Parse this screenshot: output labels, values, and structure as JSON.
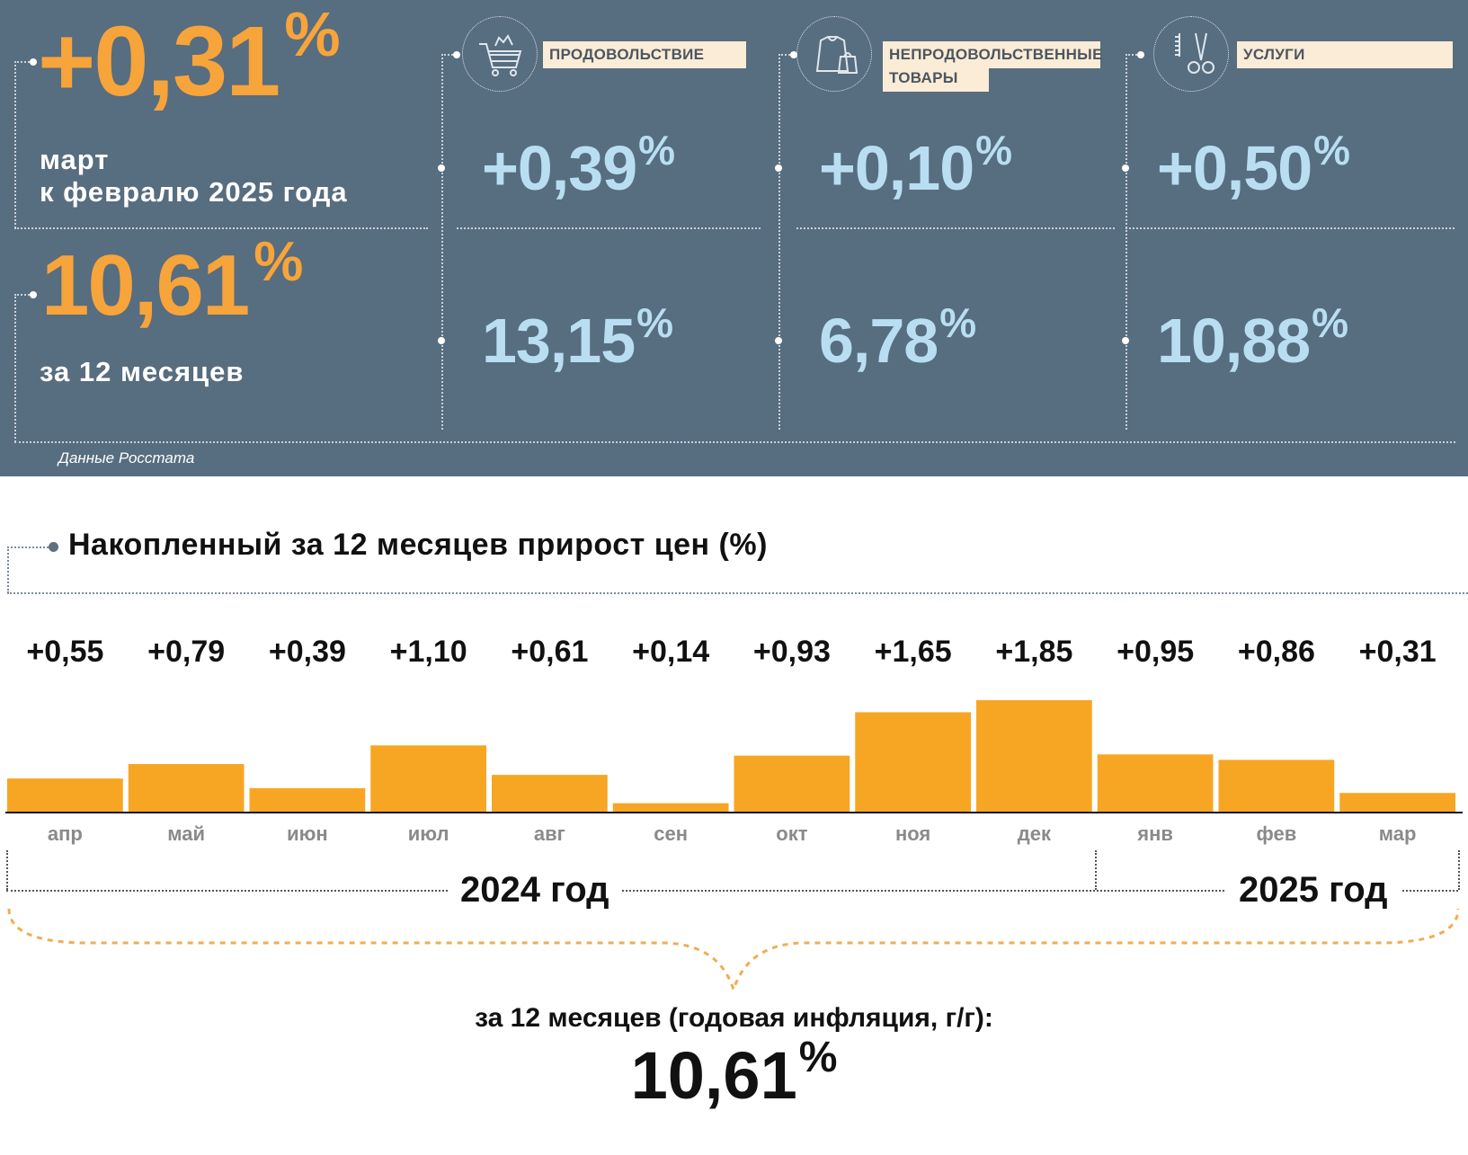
{
  "summary": {
    "monthly": {
      "value": "+0,31",
      "unit": "%",
      "label_line1": "март",
      "label_line2": "к февралю 2025 года"
    },
    "annual": {
      "value": "10,61",
      "unit": "%",
      "label": "за 12 месяцев"
    },
    "source": "Данные Росстата"
  },
  "categories": [
    {
      "name": "ПРОДОВОЛЬСТВИЕ",
      "icon": "shopping-cart-icon",
      "monthly": "+0,39",
      "annual": "13,15",
      "unit": "%"
    },
    {
      "name_line1": "НЕПРОДОВОЛЬСТВЕННЫЕ",
      "name_line2": "ТОВАРЫ",
      "icon": "clothing-bag-icon",
      "monthly": "+0,10",
      "annual": "6,78",
      "unit": "%"
    },
    {
      "name": "УСЛУГИ",
      "icon": "scissors-comb-icon",
      "monthly": "+0,50",
      "annual": "10,88",
      "unit": "%"
    }
  ],
  "colors": {
    "panel": "#576d80",
    "orange": "#f7a43a",
    "light_blue": "#b9def2",
    "label_bg": "#fbecd7",
    "bar": "#f7a623"
  },
  "chart_data": {
    "type": "bar",
    "title": "Накопленный за 12 месяцев прирост цен (%)",
    "categories": [
      "апр",
      "май",
      "июн",
      "июл",
      "авг",
      "сен",
      "окт",
      "ноя",
      "дек",
      "янв",
      "фев",
      "мар"
    ],
    "values": [
      0.55,
      0.79,
      0.39,
      1.1,
      0.61,
      0.14,
      0.93,
      1.65,
      1.85,
      0.95,
      0.86,
      0.31
    ],
    "value_labels": [
      "+0,55",
      "+0,79",
      "+0,39",
      "+1,10",
      "+0,61",
      "+0,14",
      "+0,93",
      "+1,65",
      "+1,85",
      "+0,95",
      "+0,86",
      "+0,31"
    ],
    "ylim": [
      0,
      1.85
    ],
    "grid": false,
    "year_groups": [
      {
        "label": "2024 год",
        "from": "апр",
        "to": "дек"
      },
      {
        "label": "2025 год",
        "from": "янв",
        "to": "мар"
      }
    ],
    "total_caption": "за 12 месяцев (годовая инфляция, г/г):",
    "total_value": "10,61",
    "total_unit": "%"
  }
}
